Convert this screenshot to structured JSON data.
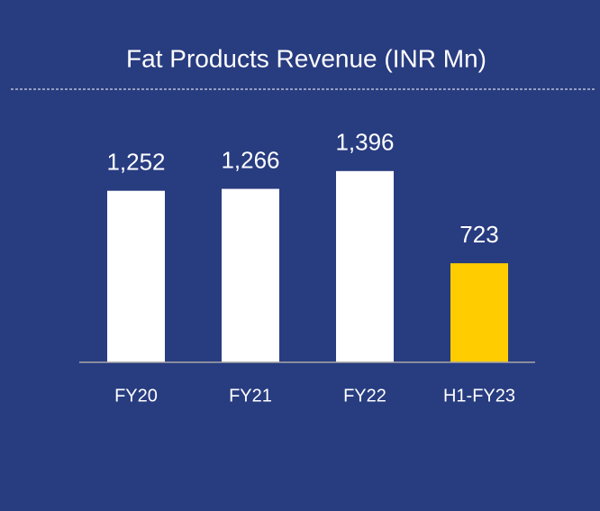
{
  "chart_data": {
    "type": "bar",
    "title": "Fat Products Revenue (INR Mn)",
    "categories": [
      "FY20",
      "FY21",
      "FY22",
      "H1-FY23"
    ],
    "values": [
      1252,
      1266,
      1396,
      723
    ],
    "value_labels": [
      "1,252",
      "1,266",
      "1,396",
      "723"
    ],
    "colors": [
      "#ffffff",
      "#ffffff",
      "#ffffff",
      "#ffcc00"
    ],
    "ylim": [
      0,
      1500
    ]
  }
}
